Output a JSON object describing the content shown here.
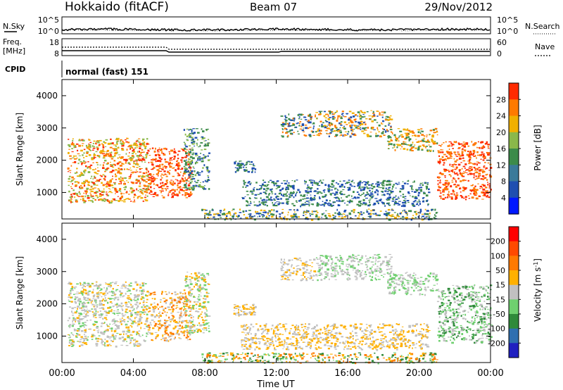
{
  "header": {
    "station": "Hokkaido (fitACF)",
    "beam": "Beam 07",
    "date": "29/Nov/2012"
  },
  "top_panels": {
    "nsky_label": "N.Sky",
    "nsky_ticks": [
      "10^5",
      "10^0"
    ],
    "nsearch_label": "N.Search",
    "nsearch_ticks": [
      "10^5",
      "10^0"
    ],
    "freq_label_1": "Freq.",
    "freq_label_2": "[MHz]",
    "freq_ticks": [
      "18",
      "8"
    ],
    "nave_label": "Nave",
    "nave_ticks": [
      "60",
      "0"
    ],
    "cpid_label": "CPID",
    "cpid_value": "normal (fast) 151"
  },
  "chart_data": [
    {
      "type": "heatmap",
      "title": "",
      "xlabel": "",
      "ylabel": "Slant Range [km]",
      "x_ticks": [
        "00:00",
        "04:00",
        "08:00",
        "12:00",
        "16:00",
        "20:00",
        "00:00"
      ],
      "y_ticks": [
        "1000",
        "2000",
        "3000",
        "4000"
      ],
      "xlim": [
        0,
        24
      ],
      "ylim": [
        180,
        4500
      ],
      "colorbar_label": "Power [dB]",
      "colorbar_ticks": [
        "4",
        "8",
        "12",
        "16",
        "20",
        "24",
        "28"
      ],
      "colorbar_colors": [
        "#0018ff",
        "#1f4fb0",
        "#3a7a9a",
        "#3c8b4a",
        "#8ab84a",
        "#f0b000",
        "#ff7a00",
        "#ff2a00"
      ],
      "colorbar_range": [
        0,
        32
      ],
      "echo_regions": [
        {
          "t": [
            0.3,
            4.8
          ],
          "r": [
            700,
            2700
          ],
          "level": "mixed",
          "colors": [
            "#ff2a00",
            "#ff7a00",
            "#f0b000",
            "#8ab84a"
          ]
        },
        {
          "t": [
            4.8,
            7.2
          ],
          "r": [
            850,
            2400
          ],
          "level": "high",
          "colors": [
            "#ff2a00",
            "#ff7a00"
          ]
        },
        {
          "t": [
            6.8,
            8.2
          ],
          "r": [
            1100,
            3000
          ],
          "level": "low",
          "colors": [
            "#3c8b4a",
            "#1f4fb0",
            "#8ab84a"
          ]
        },
        {
          "t": [
            9.6,
            10.8
          ],
          "r": [
            1650,
            2000
          ],
          "level": "low",
          "colors": [
            "#3c8b4a",
            "#1f4fb0"
          ]
        },
        {
          "t": [
            12.2,
            14.2
          ],
          "r": [
            2750,
            3450
          ],
          "level": "mid",
          "colors": [
            "#1f4fb0",
            "#3c8b4a",
            "#ff7a00"
          ]
        },
        {
          "t": [
            14.2,
            18.4
          ],
          "r": [
            2750,
            3550
          ],
          "level": "mid",
          "colors": [
            "#1f4fb0",
            "#3c8b4a",
            "#f0b000",
            "#ff7a00"
          ]
        },
        {
          "t": [
            18.2,
            21.0
          ],
          "r": [
            2300,
            3000
          ],
          "level": "mid",
          "colors": [
            "#3c8b4a",
            "#f0b000",
            "#ff7a00"
          ]
        },
        {
          "t": [
            21.0,
            24.0
          ],
          "r": [
            800,
            2600
          ],
          "level": "high",
          "colors": [
            "#ff2a00",
            "#ff7a00"
          ]
        },
        {
          "t": [
            7.8,
            21.0
          ],
          "r": [
            180,
            500
          ],
          "level": "low",
          "colors": [
            "#1f4fb0",
            "#3c8b4a",
            "#f0b000"
          ]
        },
        {
          "t": [
            10.0,
            20.5
          ],
          "r": [
            600,
            1400
          ],
          "level": "low",
          "colors": [
            "#1f4fb0",
            "#3c8b4a"
          ]
        }
      ]
    },
    {
      "type": "heatmap",
      "title": "",
      "xlabel": "Time UT",
      "ylabel": "Slant Range [km]",
      "x_ticks": [
        "00:00",
        "04:00",
        "08:00",
        "12:00",
        "16:00",
        "20:00",
        "00:00"
      ],
      "y_ticks": [
        "1000",
        "2000",
        "3000",
        "4000"
      ],
      "xlim": [
        0,
        24
      ],
      "ylim": [
        180,
        4500
      ],
      "colorbar_label": "Velocity [m s^-1]",
      "colorbar_ticks": [
        "200",
        "100",
        "50",
        "15",
        "-15",
        "-50",
        "-100",
        "-200"
      ],
      "colorbar_colors": [
        "#2020c0",
        "#2f6fb0",
        "#2f8a3a",
        "#6fd06f",
        "#c0c0c0",
        "#ffb000",
        "#ff7a00",
        "#ff4a00",
        "#ff0000"
      ],
      "colorbar_range": [
        -250,
        250
      ],
      "echo_regions": [
        {
          "t": [
            0.3,
            4.8
          ],
          "r": [
            700,
            2700
          ],
          "level": "ground",
          "colors": [
            "#c0c0c0",
            "#c0c0c0",
            "#ffb000",
            "#6fd06f"
          ]
        },
        {
          "t": [
            4.8,
            7.2
          ],
          "r": [
            850,
            2400
          ],
          "level": "ground",
          "colors": [
            "#c0c0c0",
            "#ffb000",
            "#ff7a00"
          ]
        },
        {
          "t": [
            6.8,
            8.2
          ],
          "r": [
            1100,
            3000
          ],
          "level": "mixed",
          "colors": [
            "#c0c0c0",
            "#ffb000",
            "#6fd06f"
          ]
        },
        {
          "t": [
            9.6,
            10.8
          ],
          "r": [
            1650,
            2000
          ],
          "level": "mixed",
          "colors": [
            "#c0c0c0",
            "#ffb000"
          ]
        },
        {
          "t": [
            12.2,
            14.2
          ],
          "r": [
            2750,
            3450
          ],
          "level": "ground",
          "colors": [
            "#c0c0c0",
            "#c0c0c0",
            "#ffb000"
          ]
        },
        {
          "t": [
            14.2,
            18.4
          ],
          "r": [
            2750,
            3550
          ],
          "level": "ground",
          "colors": [
            "#c0c0c0",
            "#c0c0c0",
            "#6fd06f"
          ]
        },
        {
          "t": [
            18.2,
            21.0
          ],
          "r": [
            2300,
            3000
          ],
          "level": "ground",
          "colors": [
            "#c0c0c0",
            "#6fd06f"
          ]
        },
        {
          "t": [
            21.0,
            24.0
          ],
          "r": [
            800,
            2600
          ],
          "level": "mixed",
          "colors": [
            "#c0c0c0",
            "#6fd06f",
            "#2f8a3a"
          ]
        },
        {
          "t": [
            7.8,
            21.0
          ],
          "r": [
            180,
            500
          ],
          "level": "mixed",
          "colors": [
            "#ffb000",
            "#ff7a00",
            "#6fd06f",
            "#2f8a3a"
          ]
        },
        {
          "t": [
            10.0,
            20.5
          ],
          "r": [
            600,
            1400
          ],
          "level": "mixed",
          "colors": [
            "#ffb000",
            "#c0c0c0"
          ]
        }
      ]
    }
  ]
}
